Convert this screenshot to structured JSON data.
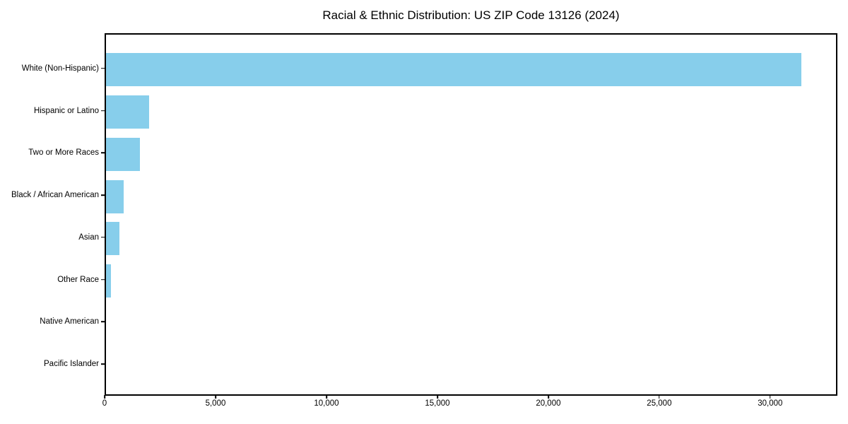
{
  "chart_data": {
    "type": "bar",
    "orientation": "horizontal",
    "title": "Racial & Ethnic Distribution: US ZIP Code 13126 (2024)",
    "categories": [
      "White (Non-Hispanic)",
      "Hispanic or Latino",
      "Two or More Races",
      "Black / African American",
      "Asian",
      "Other Race",
      "Native American",
      "Pacific Islander"
    ],
    "values": [
      31460,
      1940,
      1520,
      790,
      600,
      210,
      0,
      0
    ],
    "xlabel": "",
    "ylabel": "",
    "xlim": [
      0,
      33030
    ],
    "x_ticks": [
      0,
      5000,
      10000,
      15000,
      20000,
      25000,
      30000
    ],
    "x_tick_labels": [
      "0",
      "5,000",
      "10,000",
      "15,000",
      "20,000",
      "25,000",
      "30,000"
    ],
    "bar_color": "#87CEEB",
    "grid": false,
    "legend": false
  }
}
